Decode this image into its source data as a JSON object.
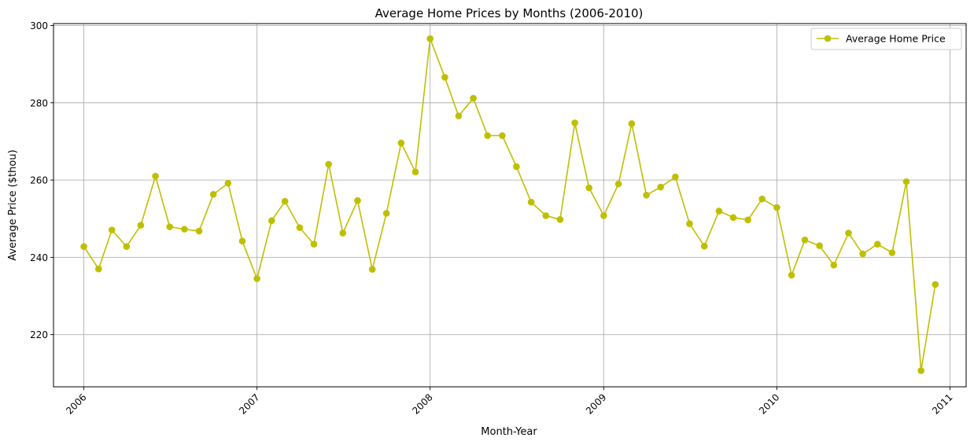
{
  "chart_data": {
    "type": "line",
    "title": "Average Home Prices by Months (2006-2010)",
    "xlabel": "Month-Year",
    "ylabel": "Average Price ($thou)",
    "x_ticks": [
      "2006",
      "2007",
      "2008",
      "2009",
      "2010",
      "2011"
    ],
    "y_ticks": [
      220,
      240,
      260,
      280,
      300
    ],
    "xlim": [
      "2005-10-29",
      "2011-02-04"
    ],
    "ylim": [
      206.5,
      300.5
    ],
    "grid": true,
    "legend_position": "top-right",
    "series": [
      {
        "name": "Average Home Price",
        "color": "#bfbf00",
        "marker": "circle",
        "points": [
          {
            "x": "2006-01",
            "y": 242.8
          },
          {
            "x": "2006-02",
            "y": 237.0
          },
          {
            "x": "2006-03",
            "y": 247.1
          },
          {
            "x": "2006-04",
            "y": 242.8
          },
          {
            "x": "2006-05",
            "y": 248.3
          },
          {
            "x": "2006-06",
            "y": 261.0
          },
          {
            "x": "2006-07",
            "y": 247.9
          },
          {
            "x": "2006-08",
            "y": 247.3
          },
          {
            "x": "2006-09",
            "y": 246.8
          },
          {
            "x": "2006-10",
            "y": 256.3
          },
          {
            "x": "2006-11",
            "y": 259.2
          },
          {
            "x": "2006-12",
            "y": 244.2
          },
          {
            "x": "2007-01",
            "y": 234.5
          },
          {
            "x": "2007-02",
            "y": 249.5
          },
          {
            "x": "2007-03",
            "y": 254.5
          },
          {
            "x": "2007-04",
            "y": 247.7
          },
          {
            "x": "2007-05",
            "y": 243.4
          },
          {
            "x": "2007-06",
            "y": 264.1
          },
          {
            "x": "2007-07",
            "y": 246.3
          },
          {
            "x": "2007-08",
            "y": 254.7
          },
          {
            "x": "2007-09",
            "y": 236.9
          },
          {
            "x": "2007-10",
            "y": 251.4
          },
          {
            "x": "2007-11",
            "y": 269.6
          },
          {
            "x": "2007-12",
            "y": 262.1
          },
          {
            "x": "2008-01",
            "y": 296.6
          },
          {
            "x": "2008-02",
            "y": 286.6
          },
          {
            "x": "2008-03",
            "y": 276.6
          },
          {
            "x": "2008-04",
            "y": 281.2
          },
          {
            "x": "2008-05",
            "y": 271.5
          },
          {
            "x": "2008-06",
            "y": 271.5
          },
          {
            "x": "2008-07",
            "y": 263.5
          },
          {
            "x": "2008-08",
            "y": 254.3
          },
          {
            "x": "2008-09",
            "y": 250.8
          },
          {
            "x": "2008-10",
            "y": 249.8
          },
          {
            "x": "2008-11",
            "y": 274.8
          },
          {
            "x": "2008-12",
            "y": 258.0
          },
          {
            "x": "2009-01",
            "y": 250.8
          },
          {
            "x": "2009-02",
            "y": 259.0
          },
          {
            "x": "2009-03",
            "y": 274.6
          },
          {
            "x": "2009-04",
            "y": 256.1
          },
          {
            "x": "2009-05",
            "y": 258.2
          },
          {
            "x": "2009-06",
            "y": 260.8
          },
          {
            "x": "2009-07",
            "y": 248.7
          },
          {
            "x": "2009-08",
            "y": 242.9
          },
          {
            "x": "2009-09",
            "y": 252.0
          },
          {
            "x": "2009-10",
            "y": 250.3
          },
          {
            "x": "2009-11",
            "y": 249.7
          },
          {
            "x": "2009-12",
            "y": 255.1
          },
          {
            "x": "2010-01",
            "y": 252.9
          },
          {
            "x": "2010-02",
            "y": 235.4
          },
          {
            "x": "2010-03",
            "y": 244.5
          },
          {
            "x": "2010-04",
            "y": 243.0
          },
          {
            "x": "2010-05",
            "y": 238.0
          },
          {
            "x": "2010-06",
            "y": 246.3
          },
          {
            "x": "2010-07",
            "y": 240.9
          },
          {
            "x": "2010-08",
            "y": 243.4
          },
          {
            "x": "2010-09",
            "y": 241.2
          },
          {
            "x": "2010-10",
            "y": 259.6
          },
          {
            "x": "2010-11",
            "y": 210.7
          },
          {
            "x": "2010-12",
            "y": 233.0
          }
        ]
      }
    ]
  }
}
